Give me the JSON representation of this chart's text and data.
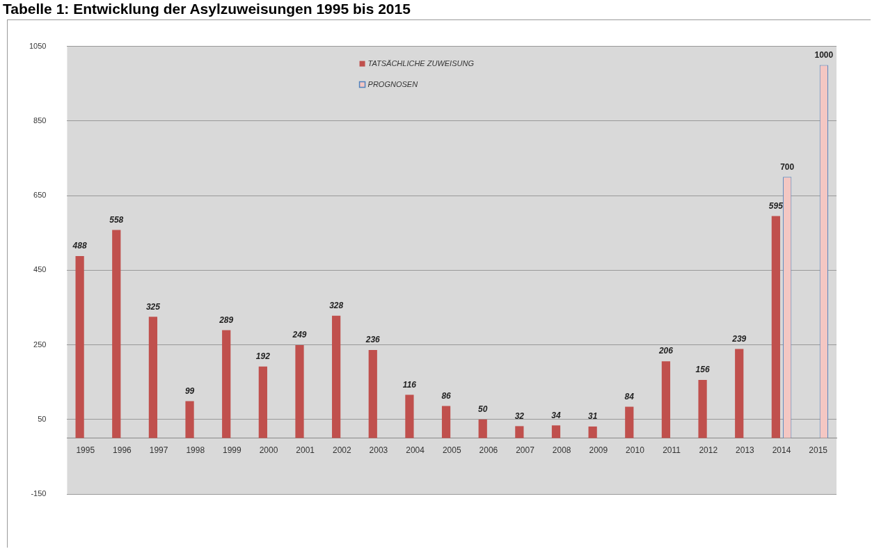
{
  "chart_data": {
    "type": "bar",
    "title": "Tabelle 1: Entwicklung der Asylzuweisungen 1995 bis 2015",
    "categories": [
      "1995",
      "1996",
      "1997",
      "1998",
      "1999",
      "2000",
      "2001",
      "2002",
      "2003",
      "2004",
      "2005",
      "2006",
      "2007",
      "2008",
      "2009",
      "2010",
      "2011",
      "2012",
      "2013",
      "2014",
      "2015"
    ],
    "series": [
      {
        "name": "TATSÄCHLICHE ZUWEISUNG",
        "color": "#c0504d",
        "values": [
          488,
          558,
          325,
          99,
          289,
          192,
          249,
          328,
          236,
          116,
          86,
          50,
          32,
          34,
          31,
          84,
          206,
          156,
          239,
          595,
          null
        ]
      },
      {
        "name": "PROGNOSEN",
        "color": "#f4c7c3",
        "values": [
          null,
          null,
          null,
          null,
          null,
          null,
          null,
          null,
          null,
          null,
          null,
          null,
          null,
          null,
          null,
          null,
          null,
          null,
          null,
          700,
          1000
        ]
      }
    ],
    "ylim": [
      -150,
      1050
    ],
    "yticks": [
      -150,
      50,
      250,
      450,
      650,
      850,
      1050
    ],
    "grid": "y",
    "legend": "top",
    "data_labels": true
  }
}
